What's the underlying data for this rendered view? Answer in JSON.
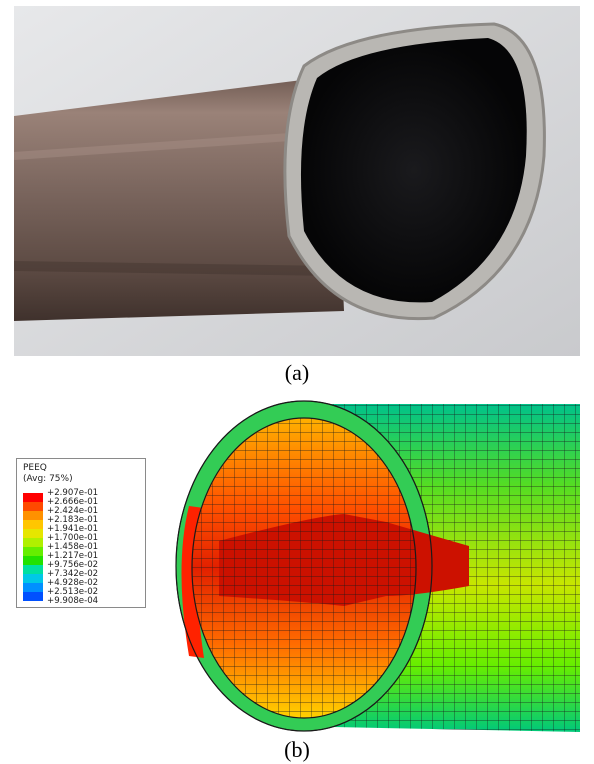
{
  "captions": {
    "a": "(a)",
    "b": "(b)"
  },
  "legend": {
    "title": "PEEQ",
    "subtitle": "(Avg: 75%)",
    "values": [
      "+2.907e-01",
      "+2.666e-01",
      "+2.424e-01",
      "+2.183e-01",
      "+1.941e-01",
      "+1.700e-01",
      "+1.458e-01",
      "+1.217e-01",
      "+9.756e-02",
      "+7.342e-02",
      "+4.928e-02",
      "+2.513e-02",
      "+9.908e-04"
    ],
    "colors": [
      "#ff0000",
      "#ff4a00",
      "#ff9100",
      "#ffc600",
      "#e6e600",
      "#b0f000",
      "#66ee00",
      "#22e200",
      "#00e0a0",
      "#00c8e6",
      "#0090ff",
      "#0050ff",
      "#0000ff"
    ]
  }
}
